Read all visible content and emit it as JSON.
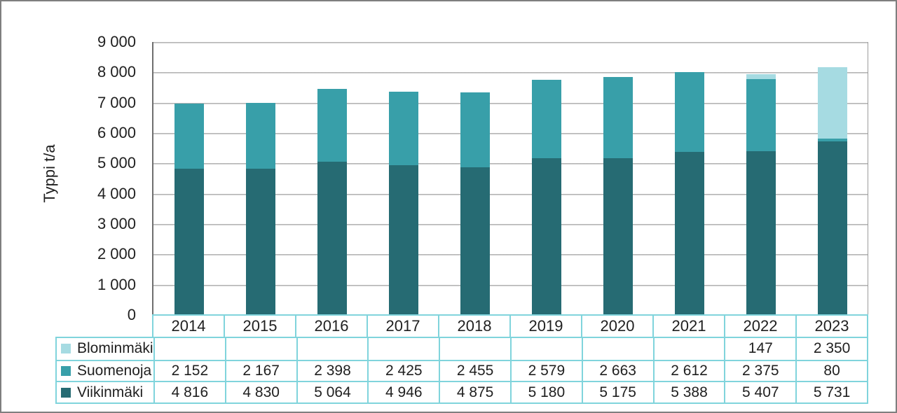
{
  "chart_data": {
    "type": "bar",
    "stacked": true,
    "title": "",
    "xlabel": "",
    "ylabel": "Typpi t/a",
    "ylim": [
      0,
      9000
    ],
    "ytick_step": 1000,
    "ytick_labels": [
      "0",
      "1 000",
      "2 000",
      "3 000",
      "4 000",
      "5 000",
      "6 000",
      "7 000",
      "8 000",
      "9 000"
    ],
    "grid": true,
    "legend_position": "table-left",
    "categories": [
      "2014",
      "2015",
      "2016",
      "2017",
      "2018",
      "2019",
      "2020",
      "2021",
      "2022",
      "2023"
    ],
    "series": [
      {
        "name": "Blominmäki",
        "color": "#a6dbe2",
        "values": [
          null,
          null,
          null,
          null,
          null,
          null,
          null,
          null,
          147,
          2350
        ],
        "display": [
          "",
          "",
          "",
          "",
          "",
          "",
          "",
          "",
          "147",
          "2 350"
        ]
      },
      {
        "name": "Suomenoja",
        "color": "#389fa9",
        "values": [
          2152,
          2167,
          2398,
          2425,
          2455,
          2579,
          2663,
          2612,
          2375,
          80
        ],
        "display": [
          "2 152",
          "2 167",
          "2 398",
          "2 425",
          "2 455",
          "2 579",
          "2 663",
          "2 612",
          "2 375",
          "80"
        ]
      },
      {
        "name": "Viikinmäki",
        "color": "#266b73",
        "values": [
          4816,
          4830,
          5064,
          4946,
          4875,
          5180,
          5175,
          5388,
          5407,
          5731
        ],
        "display": [
          "4 816",
          "4 830",
          "5 064",
          "4 946",
          "4 875",
          "5 180",
          "5 175",
          "5 388",
          "5 407",
          "5 731"
        ]
      }
    ]
  },
  "colors": {
    "table_border": "#80d4dc",
    "gridline": "#ababab",
    "axis_line": "#6f6f6f",
    "page_border": "#7f7f7f",
    "text": "#1f1f1f"
  }
}
